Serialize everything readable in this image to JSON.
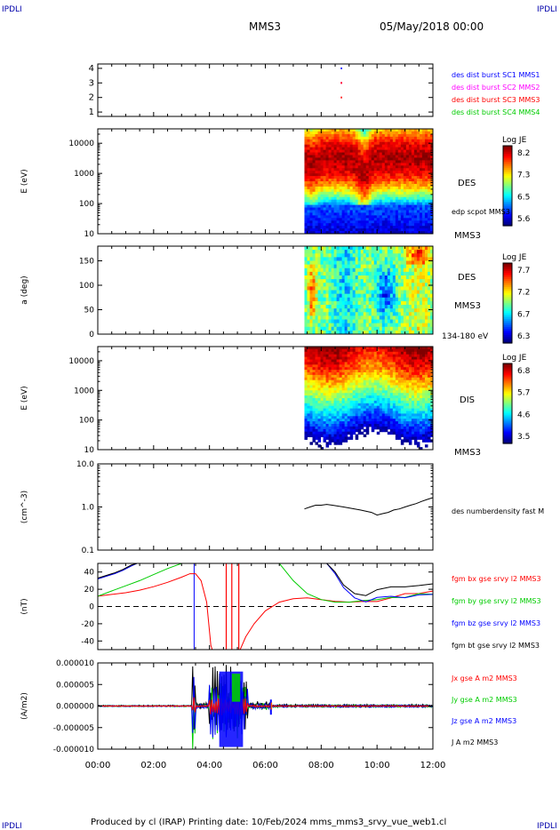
{
  "header": {
    "corner_tl": "IPDLI",
    "corner_tr": "IPDLI",
    "corner_bl": "IPDLI",
    "corner_br": "IPDLI",
    "spacecraft": "MMS3",
    "datetime": "05/May/2018 00:00"
  },
  "footer": {
    "text": "Produced by cl (IRAP)   Printing date: 10/Feb/2024   mms_mms3_srvy_vue_web1.cl"
  },
  "colors": {
    "red": "#ff0000",
    "green": "#00cc00",
    "blue": "#0000ff",
    "magenta": "#ff00ff",
    "black": "#000000",
    "lime": "#33ff00"
  },
  "time_axis": {
    "ticks": [
      "00:00",
      "02:00",
      "04:00",
      "06:00",
      "08:00",
      "10:00",
      "12:00"
    ],
    "range_hours": [
      0,
      12
    ]
  },
  "chart_data": [
    {
      "type": "scatter",
      "panel": "burst",
      "yticks": [
        "1",
        "2",
        "3",
        "4"
      ],
      "ylim": [
        0.7,
        4.3
      ],
      "series": [
        {
          "name": "des dist burst SC1 MMS1",
          "color": "#0000ff",
          "x": [
            8.7
          ],
          "y": [
            4.0
          ]
        },
        {
          "name": "des dist burst SC2 MMS2",
          "color": "#ff00ff",
          "x": [
            8.7
          ],
          "y": [
            3.0
          ]
        },
        {
          "name": "des dist burst SC3 MMS3",
          "color": "#ff0000",
          "x": [
            8.7,
            8.7
          ],
          "y": [
            3.0,
            2.0
          ]
        },
        {
          "name": "des dist burst SC4 MMS4",
          "color": "#00cc00",
          "x": [],
          "y": []
        }
      ]
    },
    {
      "type": "heatmap",
      "panel": "des_energy",
      "ylabel": "E (eV)",
      "yscale": "log",
      "yticks": [
        "10",
        "100",
        "1000",
        "10000"
      ],
      "ylim": [
        10,
        30000
      ],
      "data_start_hour": 7.4,
      "labels": [
        "DES",
        "edp scpot MMS3",
        "MMS3"
      ],
      "colorbar": {
        "title": "Log JE",
        "ticks": [
          "8.2",
          "7.3",
          "6.5",
          "5.6"
        ]
      }
    },
    {
      "type": "heatmap",
      "panel": "des_pitch",
      "ylabel": "a (deg)",
      "yticks": [
        "0",
        "50",
        "100",
        "150"
      ],
      "ylim": [
        0,
        180
      ],
      "data_start_hour": 7.4,
      "labels": [
        "DES",
        "MMS3",
        "134-180 eV"
      ],
      "colorbar": {
        "title": "Log JE",
        "ticks": [
          "7.7",
          "7.2",
          "6.7",
          "6.3"
        ]
      }
    },
    {
      "type": "heatmap",
      "panel": "dis_energy",
      "ylabel": "E (eV)",
      "yscale": "log",
      "yticks": [
        "10",
        "100",
        "1000",
        "10000"
      ],
      "ylim": [
        10,
        30000
      ],
      "data_start_hour": 7.4,
      "labels": [
        "DIS",
        "MMS3"
      ],
      "colorbar": {
        "title": "Log JE",
        "ticks": [
          "6.8",
          "5.7",
          "4.6",
          "3.5"
        ]
      }
    },
    {
      "type": "line",
      "panel": "density",
      "ylabel": "(cm^-3)",
      "yscale": "log",
      "yticks": [
        "0.1",
        "1.0",
        "10.0"
      ],
      "ylim": [
        0.1,
        10
      ],
      "series": [
        {
          "name": "des numberdensity fast M",
          "color": "#000000",
          "x": [
            7.4,
            7.6,
            7.8,
            8.0,
            8.2,
            8.4,
            8.6,
            8.8,
            9.0,
            9.2,
            9.4,
            9.6,
            9.8,
            10.0,
            10.2,
            10.4,
            10.6,
            10.8,
            11.0,
            11.2,
            11.4,
            11.6,
            11.8,
            12.0
          ],
          "y": [
            0.9,
            1.0,
            1.1,
            1.1,
            1.15,
            1.1,
            1.05,
            1.0,
            0.95,
            0.9,
            0.85,
            0.8,
            0.75,
            0.65,
            0.7,
            0.75,
            0.85,
            0.9,
            1.0,
            1.1,
            1.2,
            1.35,
            1.5,
            1.65
          ]
        }
      ]
    },
    {
      "type": "line",
      "panel": "fgm",
      "ylabel": "(nT)",
      "yticks": [
        "-40",
        "-20",
        "0",
        "20",
        "40"
      ],
      "ylim": [
        -50,
        50
      ],
      "zero_line": true,
      "series": [
        {
          "name": "fgm bx gse srvy l2 MMS3",
          "color": "#ff0000",
          "x": [
            0,
            0.5,
            1,
            1.5,
            2,
            2.5,
            3,
            3.3,
            3.5,
            3.7,
            3.9,
            4.05,
            4.1,
            5.1,
            5.3,
            5.6,
            6.0,
            6.5,
            7.0,
            7.5,
            8.0,
            8.5,
            9.0,
            9.5,
            10.0,
            10.5,
            11.0,
            11.5,
            12.0
          ],
          "y": [
            12,
            14,
            16,
            19,
            23,
            28,
            34,
            38,
            38,
            30,
            5,
            -45,
            -50,
            -50,
            -35,
            -20,
            -5,
            5,
            9,
            10,
            8,
            6,
            5,
            6,
            8,
            11,
            15,
            18,
            20
          ]
        },
        {
          "name": "fgm by gse srvy l2 MMS3",
          "color": "#00cc00",
          "x": [
            0,
            0.5,
            1,
            1.5,
            2,
            2.5,
            3,
            3.5,
            6.5,
            7.0,
            7.5,
            8.0,
            8.5,
            9.0,
            9.5,
            10.0,
            10.5,
            11.0,
            11.5,
            12.0
          ],
          "y": [
            12,
            18,
            24,
            30,
            37,
            44,
            50,
            50,
            50,
            30,
            15,
            8,
            5,
            5,
            7,
            9,
            11,
            12,
            12,
            13
          ]
        },
        {
          "name": "fgm bz gse srvy l2 MMS3",
          "color": "#0000ff",
          "x": [
            0,
            0.3,
            0.6,
            0.9,
            1.2,
            1.4,
            8.2,
            8.5,
            8.8,
            9.2,
            9.6,
            10.0,
            10.5,
            11.0,
            11.5,
            12.0
          ],
          "y": [
            32,
            35,
            38,
            42,
            47,
            50,
            50,
            38,
            22,
            10,
            6,
            8,
            10,
            12,
            12,
            13
          ]
        },
        {
          "name": "fgm bt gse srvy l2 MMS3",
          "color": "#000000",
          "x": [
            0,
            0.3,
            0.6,
            0.9,
            1.2,
            1.4,
            8.2,
            8.5,
            8.8,
            9.2,
            9.6,
            10.0,
            10.5,
            11.0,
            11.5,
            12.0
          ],
          "y": [
            33,
            36,
            39,
            43,
            48,
            50,
            50,
            40,
            25,
            15,
            14,
            18,
            22,
            25,
            27,
            28
          ]
        }
      ]
    },
    {
      "type": "line",
      "panel": "current",
      "ylabel": "(A/m2)",
      "yticks": [
        "-0.000010",
        "-0.000005",
        "0.000000",
        "0.000005",
        "0.000010"
      ],
      "ylim": [
        -1e-05,
        1e-05
      ],
      "series": [
        {
          "name": "Jx gse A m2 MMS3",
          "color": "#ff0000"
        },
        {
          "name": "Jy gse A m2 MMS3",
          "color": "#00cc00"
        },
        {
          "name": "Jz gse A m2 MMS3",
          "color": "#0000ff"
        },
        {
          "name": "J A m2 MMS3",
          "color": "#000000"
        }
      ]
    }
  ]
}
